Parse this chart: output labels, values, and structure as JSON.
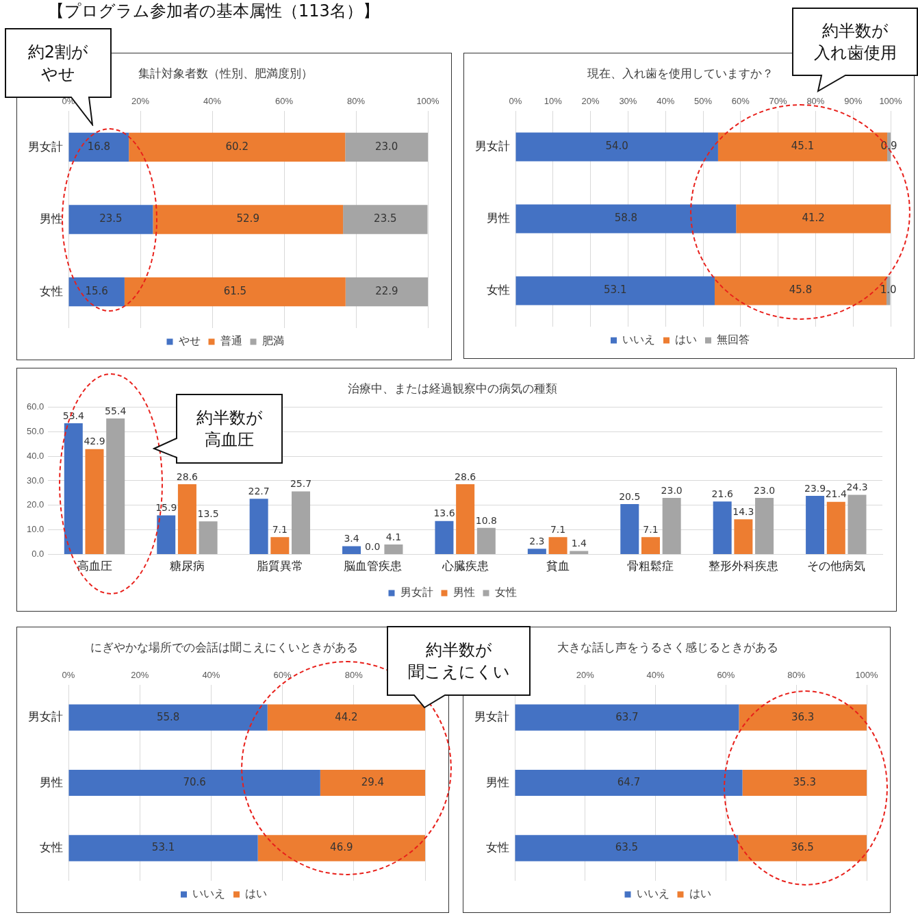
{
  "chart_data": [
    {
      "type": "other",
      "title": "【プログラム参加者の基本属性（113名）】"
    },
    {
      "type": "bar",
      "orientation": "horizontal",
      "stacked": true,
      "title": "集計対象者数（性別、肥満度別）",
      "categories": [
        "男女計",
        "男性",
        "女性"
      ],
      "series": [
        {
          "name": "やせ",
          "color": "#4472c4",
          "values": [
            16.8,
            23.5,
            15.6
          ],
          "value_labels": [
            "16.8",
            "23.5",
            "15.6"
          ]
        },
        {
          "name": "普通",
          "color": "#ed7d31",
          "values": [
            60.2,
            52.9,
            61.5
          ],
          "value_labels": [
            "60.2",
            "52.9",
            "61.5"
          ]
        },
        {
          "name": "肥満",
          "color": "#a5a5a5",
          "values": [
            23.0,
            23.5,
            22.9
          ],
          "value_labels": [
            "23.0",
            "23.5",
            "22.9"
          ]
        }
      ],
      "xlim": [
        0,
        100
      ],
      "xticks": [
        {
          "value": 0,
          "label": "0%"
        },
        {
          "value": 20,
          "label": "20%"
        },
        {
          "value": 40,
          "label": "40%"
        },
        {
          "value": 60,
          "label": "60%"
        },
        {
          "value": 80,
          "label": "80%"
        },
        {
          "value": 100,
          "label": "100%"
        }
      ],
      "grid": "x",
      "legend": "bottom",
      "annotations": [
        "約2割が",
        "やせ"
      ]
    },
    {
      "type": "bar",
      "orientation": "horizontal",
      "stacked": true,
      "title": "現在、入れ歯を使用していますか？",
      "categories": [
        "男女計",
        "男性",
        "女性"
      ],
      "series": [
        {
          "name": "いいえ",
          "color": "#4472c4",
          "values": [
            54.0,
            58.8,
            53.1
          ],
          "value_labels": [
            "54.0",
            "58.8",
            "53.1"
          ]
        },
        {
          "name": "はい",
          "color": "#ed7d31",
          "values": [
            45.1,
            41.2,
            45.8
          ],
          "value_labels": [
            "45.1",
            "41.2",
            "45.8"
          ]
        },
        {
          "name": "無回答",
          "color": "#a5a5a5",
          "values": [
            0.9,
            null,
            1.0
          ],
          "value_labels": [
            "0.9",
            null,
            "1.0"
          ]
        }
      ],
      "xlim": [
        0,
        100
      ],
      "xticks": [
        {
          "value": 0,
          "label": "0%"
        },
        {
          "value": 10,
          "label": "10%"
        },
        {
          "value": 20,
          "label": "20%"
        },
        {
          "value": 30,
          "label": "30%"
        },
        {
          "value": 40,
          "label": "40%"
        },
        {
          "value": 50,
          "label": "50%"
        },
        {
          "value": 60,
          "label": "60%"
        },
        {
          "value": 70,
          "label": "70%"
        },
        {
          "value": 80,
          "label": "80%"
        },
        {
          "value": 90,
          "label": "90%"
        },
        {
          "value": 100,
          "label": "100%"
        }
      ],
      "grid": "x",
      "legend": "bottom",
      "annotations": [
        "約半数が",
        "入れ歯使用"
      ]
    },
    {
      "type": "bar",
      "title": "治療中、または経過観察中の病気の種類",
      "categories": [
        "高血圧",
        "糖尿病",
        "脂質異常",
        "脳血管疾患",
        "心臓疾患",
        "貧血",
        "骨粗鬆症",
        "整形外科疾患",
        "その他病気"
      ],
      "series": [
        {
          "name": "男女計",
          "color": "#4472c4",
          "values": [
            53.4,
            15.9,
            22.7,
            3.4,
            13.6,
            2.3,
            20.5,
            21.6,
            23.9
          ],
          "value_labels": [
            "53.4",
            "15.9",
            "22.7",
            "3.4",
            "13.6",
            "2.3",
            "20.5",
            "21.6",
            "23.9"
          ]
        },
        {
          "name": "男性",
          "color": "#ed7d31",
          "values": [
            42.9,
            28.6,
            7.1,
            0.0,
            28.6,
            7.1,
            7.1,
            14.3,
            21.4
          ],
          "value_labels": [
            "42.9",
            "28.6",
            "7.1",
            "0.0",
            "28.6",
            "7.1",
            "7.1",
            "14.3",
            "21.4"
          ]
        },
        {
          "name": "女性",
          "color": "#a5a5a5",
          "values": [
            55.4,
            13.5,
            25.7,
            4.1,
            10.8,
            1.4,
            23.0,
            23.0,
            24.3
          ],
          "value_labels": [
            "55.4",
            "13.5",
            "25.7",
            "4.1",
            "10.8",
            "1.4",
            "23.0",
            "23.0",
            "24.3"
          ]
        }
      ],
      "ylim": [
        0,
        60
      ],
      "yticks": [
        {
          "value": 0,
          "label": "0.0"
        },
        {
          "value": 10,
          "label": "10.0"
        },
        {
          "value": 20,
          "label": "20.0"
        },
        {
          "value": 30,
          "label": "30.0"
        },
        {
          "value": 40,
          "label": "40.0"
        },
        {
          "value": 50,
          "label": "50.0"
        },
        {
          "value": 60,
          "label": "60.0"
        }
      ],
      "grid": "y",
      "legend": "bottom",
      "annotations": [
        "約半数が",
        "高血圧"
      ]
    },
    {
      "type": "bar",
      "orientation": "horizontal",
      "stacked": true,
      "title": "にぎやかな場所での会話は聞こえにくいときがある",
      "categories": [
        "男女計",
        "男性",
        "女性"
      ],
      "series": [
        {
          "name": "いいえ",
          "color": "#4472c4",
          "values": [
            55.8,
            70.6,
            53.1
          ],
          "value_labels": [
            "55.8",
            "70.6",
            "53.1"
          ]
        },
        {
          "name": "はい",
          "color": "#ed7d31",
          "values": [
            44.2,
            29.4,
            46.9
          ],
          "value_labels": [
            "44.2",
            "29.4",
            "46.9"
          ]
        }
      ],
      "xlim": [
        0,
        100
      ],
      "xticks": [
        {
          "value": 0,
          "label": "0%"
        },
        {
          "value": 20,
          "label": "20%"
        },
        {
          "value": 40,
          "label": "40%"
        },
        {
          "value": 60,
          "label": "60%"
        },
        {
          "value": 80,
          "label": "80%"
        },
        {
          "value": 100,
          "label": null
        }
      ],
      "grid": "x",
      "legend": "bottom",
      "annotations": [
        "約半数が",
        "聞こえにくい"
      ]
    },
    {
      "type": "bar",
      "orientation": "horizontal",
      "stacked": true,
      "title": "大きな話し声をうるさく感じるときがある",
      "categories": [
        "男女計",
        "男性",
        "女性"
      ],
      "series": [
        {
          "name": "いいえ",
          "color": "#4472c4",
          "values": [
            63.7,
            64.7,
            63.5
          ],
          "value_labels": [
            "63.7",
            "64.7",
            "63.5"
          ]
        },
        {
          "name": "はい",
          "color": "#ed7d31",
          "values": [
            36.3,
            35.3,
            36.5
          ],
          "value_labels": [
            "36.3",
            "35.3",
            "36.5"
          ]
        }
      ],
      "xlim": [
        0,
        100
      ],
      "xticks": [
        {
          "value": 0,
          "label": null
        },
        {
          "value": 20,
          "label": "20%"
        },
        {
          "value": 40,
          "label": "40%"
        },
        {
          "value": 60,
          "label": "60%"
        },
        {
          "value": 80,
          "label": "80%"
        },
        {
          "value": 100,
          "label": "100%"
        }
      ],
      "grid": "x",
      "legend": "bottom"
    }
  ]
}
